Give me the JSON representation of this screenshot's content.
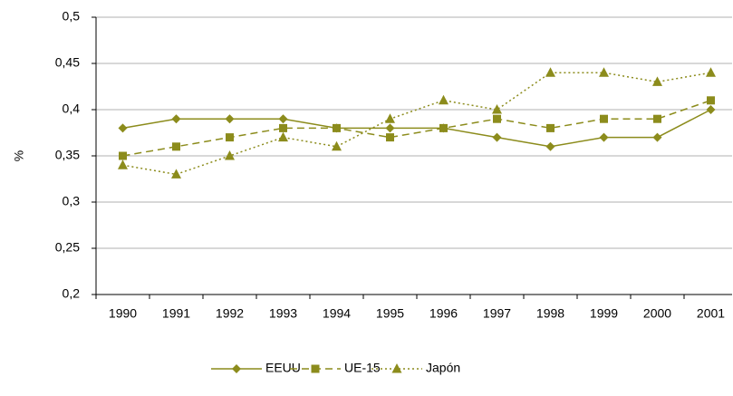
{
  "chart_data": {
    "type": "line",
    "y_label": "%",
    "categories": [
      "1990",
      "1991",
      "1992",
      "1993",
      "1994",
      "1995",
      "1996",
      "1997",
      "1998",
      "1999",
      "2000",
      "2001"
    ],
    "series": [
      {
        "name": "EEUU",
        "color": "#8c8c1c",
        "style": "solid",
        "marker": "diamond",
        "values": [
          0.38,
          0.39,
          0.39,
          0.39,
          0.38,
          0.38,
          0.38,
          0.37,
          0.36,
          0.37,
          0.37,
          0.4
        ]
      },
      {
        "name": "UE-15",
        "color": "#8c8c1c",
        "style": "dashed",
        "marker": "square",
        "values": [
          0.35,
          0.36,
          0.37,
          0.38,
          0.38,
          0.37,
          0.38,
          0.39,
          0.38,
          0.39,
          0.39,
          0.41
        ]
      },
      {
        "name": "Japón",
        "color": "#8c8c1c",
        "style": "dotted",
        "marker": "triangle",
        "values": [
          0.34,
          0.33,
          0.35,
          0.37,
          0.36,
          0.39,
          0.41,
          0.4,
          0.44,
          0.44,
          0.43,
          0.44
        ]
      }
    ],
    "ylim": [
      0.2,
      0.5
    ],
    "yticks": [
      {
        "value": 0.2,
        "label": "0,2"
      },
      {
        "value": 0.25,
        "label": "0,25"
      },
      {
        "value": 0.3,
        "label": "0,3"
      },
      {
        "value": 0.35,
        "label": "0,35"
      },
      {
        "value": 0.4,
        "label": "0,4"
      },
      {
        "value": 0.45,
        "label": "0,45"
      },
      {
        "value": 0.5,
        "label": "0,5"
      }
    ],
    "grid": true,
    "legend": "bottom"
  }
}
